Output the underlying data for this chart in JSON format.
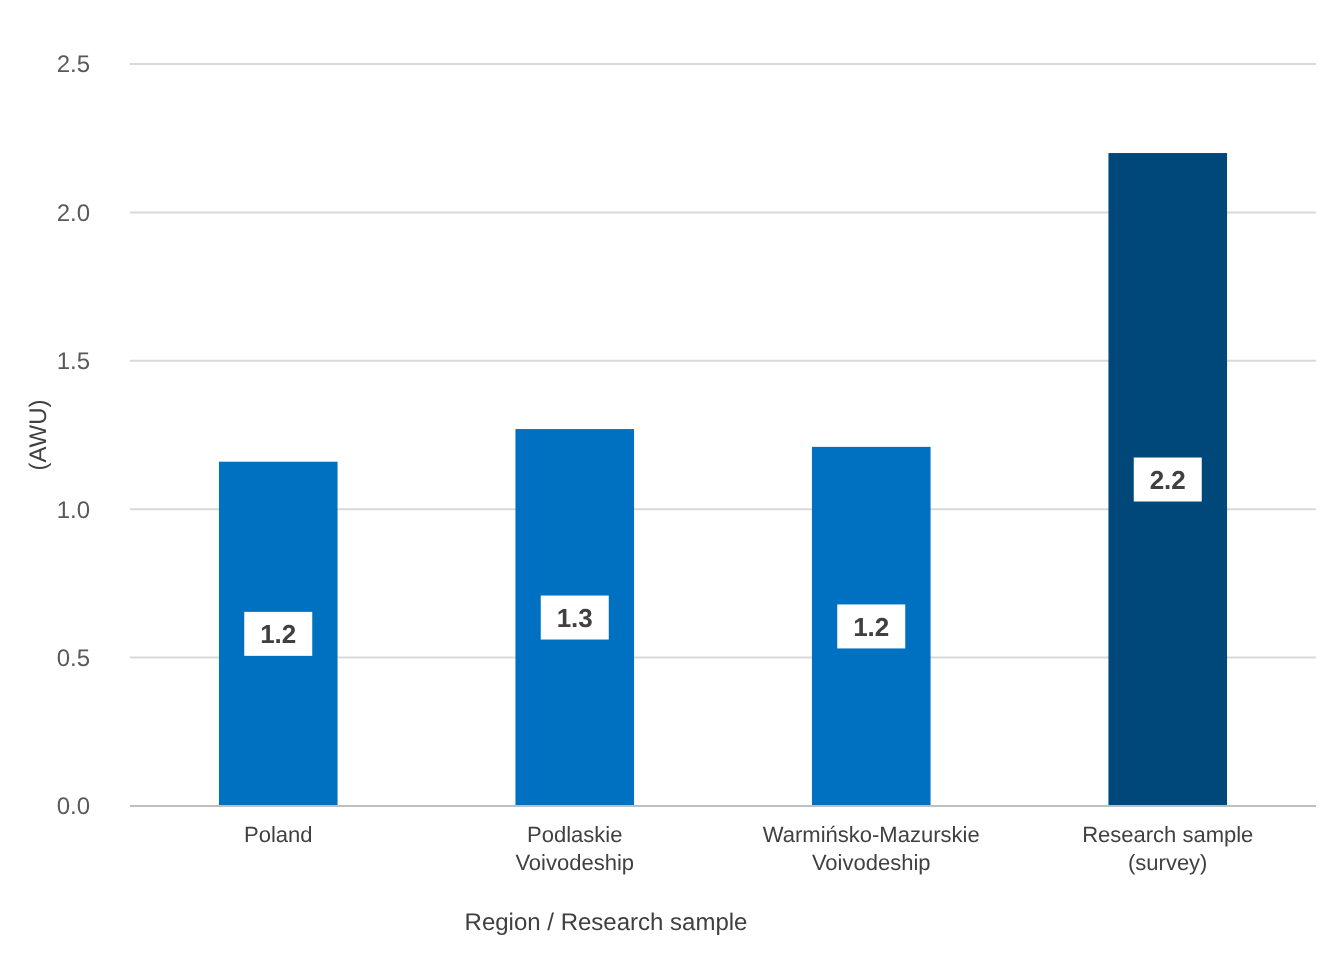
{
  "chart_data": {
    "type": "bar",
    "xlabel": "Region / Research sample",
    "ylabel": "(AWU)",
    "categories": [
      "Poland",
      "Podlaskie Voivodeship",
      "Warmińsko-Mazurskie Voivodeship",
      "Research sample (survey)"
    ],
    "values": [
      1.16,
      1.27,
      1.21,
      2.2
    ],
    "value_labels": [
      "1.2",
      "1.3",
      "1.2",
      "2.2"
    ],
    "colors": [
      "#0070c0",
      "#0070c0",
      "#0070c0",
      "#00477a"
    ],
    "ylim": [
      0,
      2.5
    ],
    "yticks": [
      {
        "value": 0,
        "label": "0.0"
      },
      {
        "value": 0.5,
        "label": "0.5"
      },
      {
        "value": 1,
        "label": "1.0"
      },
      {
        "value": 1.5,
        "label": "1.5"
      },
      {
        "value": 2,
        "label": "2.0"
      },
      {
        "value": 2.5,
        "label": "2.5"
      }
    ],
    "grid": "y"
  }
}
